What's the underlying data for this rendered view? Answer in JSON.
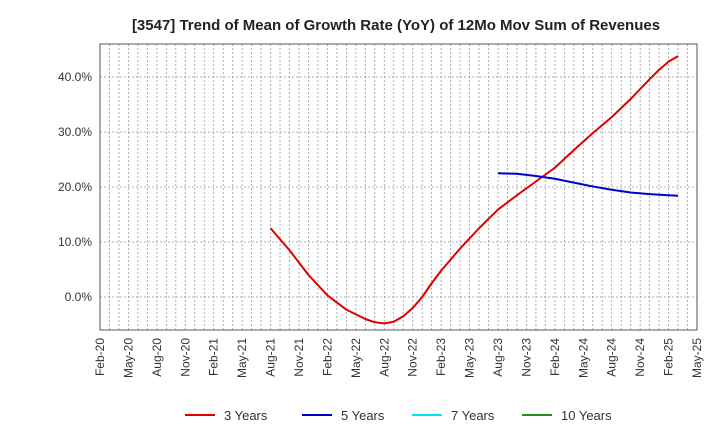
{
  "chart_data": {
    "type": "line",
    "title": "[3547]  Trend of Mean of Growth Rate (YoY) of 12Mo Mov Sum of Revenues",
    "xlabel": "",
    "ylabel": "",
    "x_tick_labels": [
      "Feb-20",
      "May-20",
      "Aug-20",
      "Nov-20",
      "Feb-21",
      "May-21",
      "Aug-21",
      "Nov-21",
      "Feb-22",
      "May-22",
      "Aug-22",
      "Nov-22",
      "Feb-23",
      "May-23",
      "Aug-23",
      "Nov-23",
      "Feb-24",
      "May-24",
      "Aug-24",
      "Nov-24",
      "Feb-25",
      "May-25"
    ],
    "x_range_months": [
      0,
      63
    ],
    "y_tick_labels": [
      "0.0%",
      "10.0%",
      "20.0%",
      "30.0%",
      "40.0%"
    ],
    "y_ticks": [
      0,
      10,
      20,
      30,
      40
    ],
    "ylim": [
      -6,
      46
    ],
    "grid": true,
    "legend_position": "bottom",
    "series": [
      {
        "name": "3 Years",
        "color": "#e00000",
        "points": [
          [
            18,
            12.5
          ],
          [
            20,
            8.5
          ],
          [
            22,
            4.0
          ],
          [
            24,
            0.3
          ],
          [
            26,
            -2.3
          ],
          [
            28,
            -4.0
          ],
          [
            29,
            -4.6
          ],
          [
            30,
            -4.8
          ],
          [
            31,
            -4.5
          ],
          [
            32,
            -3.5
          ],
          [
            33,
            -2.0
          ],
          [
            34,
            0.0
          ],
          [
            35,
            2.5
          ],
          [
            36,
            4.8
          ],
          [
            38,
            8.8
          ],
          [
            40,
            12.5
          ],
          [
            42,
            15.9
          ],
          [
            44,
            18.5
          ],
          [
            46,
            21.0
          ],
          [
            48,
            23.5
          ],
          [
            50,
            26.7
          ],
          [
            52,
            29.8
          ],
          [
            54,
            32.7
          ],
          [
            56,
            36.0
          ],
          [
            58,
            39.6
          ],
          [
            59,
            41.3
          ],
          [
            60,
            42.8
          ],
          [
            61,
            43.8
          ]
        ]
      },
      {
        "name": "5 Years",
        "color": "#0000cc",
        "points": [
          [
            42,
            22.5
          ],
          [
            44,
            22.4
          ],
          [
            46,
            22.0
          ],
          [
            48,
            21.5
          ],
          [
            50,
            20.8
          ],
          [
            52,
            20.1
          ],
          [
            54,
            19.5
          ],
          [
            56,
            19.0
          ],
          [
            58,
            18.7
          ],
          [
            60,
            18.5
          ],
          [
            61,
            18.4
          ]
        ]
      },
      {
        "name": "7 Years",
        "color": "#00e5ee",
        "points": []
      },
      {
        "name": "10 Years",
        "color": "#228b22",
        "points": []
      }
    ]
  }
}
